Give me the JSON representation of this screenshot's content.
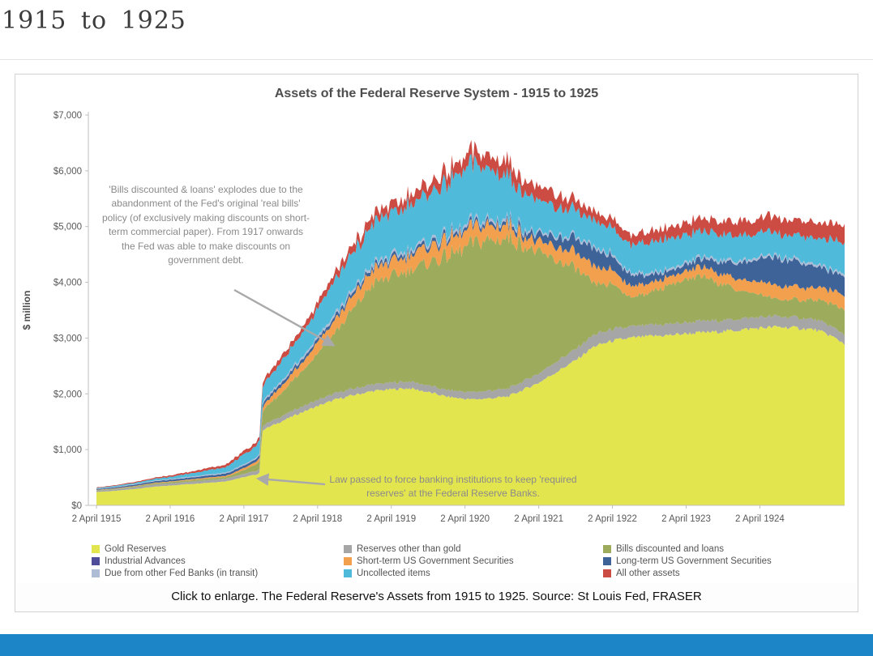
{
  "page": {
    "heading": "1915 to 1925",
    "caption": "Click to enlarge. The Federal Reserve's Assets from 1915 to 1925. Source: St Louis Fed, FRASER",
    "accent_bar_color": "#1c85c7"
  },
  "chart_data": {
    "type": "area",
    "stacked": true,
    "title": "Assets of the Federal Reserve System - 1915 to 1925",
    "xlabel": "",
    "ylabel": "$ million",
    "ylim": [
      0,
      7000
    ],
    "grid": false,
    "legend_position": "bottom",
    "y_tick_labels": [
      "$0",
      "$1,000",
      "$2,000",
      "$3,000",
      "$4,000",
      "$5,000",
      "$6,000",
      "$7,000"
    ],
    "x_tick_labels": [
      "2 April 1915",
      "2 April 1916",
      "2 April 1917",
      "2 April 1918",
      "2 April 1919",
      "2 April 1920",
      "2 April 1921",
      "2 April 1922",
      "2 April 1923",
      "2 April 1924"
    ],
    "x_tick_years": [
      1915.25,
      1916.25,
      1917.25,
      1918.25,
      1919.25,
      1920.25,
      1921.25,
      1922.25,
      1923.25,
      1924.25
    ],
    "x_years": [
      1915.25,
      1915.5,
      1915.75,
      1916.0,
      1916.25,
      1916.5,
      1916.75,
      1917.0,
      1917.1,
      1917.3,
      1917.42,
      1917.46,
      1917.5,
      1917.75,
      1918.0,
      1918.25,
      1918.5,
      1918.75,
      1919.0,
      1919.25,
      1919.5,
      1919.75,
      1920.0,
      1920.17,
      1920.33,
      1920.5,
      1920.67,
      1920.83,
      1921.0,
      1921.25,
      1921.5,
      1921.75,
      1922.0,
      1922.25,
      1922.5,
      1922.75,
      1923.0,
      1923.25,
      1923.5,
      1923.75,
      1924.0,
      1924.25,
      1924.5,
      1924.75,
      1925.0,
      1925.2,
      1925.4
    ],
    "series": [
      {
        "name": "Gold Reserves",
        "color": "#e3e54f",
        "values": [
          240,
          260,
          290,
          330,
          355,
          380,
          405,
          430,
          460,
          520,
          555,
          565,
          1350,
          1500,
          1650,
          1780,
          1900,
          1980,
          2050,
          2080,
          2100,
          2030,
          1950,
          1920,
          1900,
          1910,
          1930,
          1950,
          2050,
          2200,
          2400,
          2600,
          2850,
          2950,
          3000,
          3030,
          3050,
          3080,
          3100,
          3120,
          3150,
          3180,
          3200,
          3180,
          3150,
          3050,
          2900
        ]
      },
      {
        "name": "Reserves other than gold",
        "color": "#a6a6a6",
        "values": [
          25,
          28,
          32,
          38,
          40,
          44,
          47,
          50,
          54,
          60,
          65,
          68,
          80,
          90,
          100,
          110,
          115,
          118,
          120,
          120,
          120,
          120,
          120,
          125,
          130,
          135,
          140,
          145,
          150,
          170,
          190,
          200,
          210,
          205,
          200,
          200,
          200,
          200,
          200,
          200,
          200,
          195,
          190,
          185,
          180,
          175,
          170
        ]
      },
      {
        "name": "Bills discounted and loans",
        "color": "#9dab5c",
        "values": [
          8,
          10,
          14,
          20,
          22,
          25,
          28,
          30,
          40,
          80,
          120,
          140,
          250,
          420,
          600,
          850,
          1100,
          1450,
          1800,
          1900,
          2000,
          2200,
          2400,
          2500,
          2650,
          2700,
          2680,
          2700,
          2500,
          2150,
          1800,
          1450,
          900,
          800,
          520,
          570,
          700,
          760,
          800,
          650,
          500,
          400,
          300,
          320,
          350,
          400,
          450
        ]
      },
      {
        "name": "Industrial Advances",
        "color": "#4f4c99",
        "values": [
          0,
          0,
          0,
          0,
          0,
          0,
          0,
          0,
          0,
          0,
          0,
          0,
          0,
          0,
          0,
          0,
          0,
          0,
          0,
          0,
          0,
          0,
          0,
          0,
          0,
          0,
          0,
          0,
          0,
          0,
          0,
          0,
          0,
          0,
          0,
          0,
          0,
          0,
          0,
          0,
          0,
          0,
          0,
          0,
          0,
          0,
          0
        ]
      },
      {
        "name": "Short-term US Government Securities",
        "color": "#f2a04e",
        "values": [
          5,
          6,
          8,
          10,
          12,
          15,
          18,
          20,
          25,
          40,
          50,
          55,
          80,
          120,
          150,
          200,
          230,
          240,
          250,
          260,
          270,
          280,
          300,
          290,
          280,
          270,
          260,
          250,
          200,
          180,
          250,
          280,
          300,
          250,
          200,
          180,
          150,
          160,
          170,
          180,
          200,
          220,
          240,
          230,
          220,
          240,
          260
        ]
      },
      {
        "name": "Long-term US Government Securities",
        "color": "#3d6399",
        "values": [
          15,
          18,
          22,
          26,
          30,
          32,
          35,
          40,
          42,
          45,
          48,
          50,
          55,
          60,
          60,
          60,
          60,
          60,
          60,
          60,
          60,
          60,
          60,
          60,
          60,
          60,
          60,
          60,
          80,
          120,
          180,
          240,
          300,
          250,
          200,
          150,
          100,
          120,
          150,
          220,
          300,
          400,
          500,
          450,
          380,
          350,
          330
        ]
      },
      {
        "name": "Due from other Fed Banks (in transit)",
        "color": "#aebcd6",
        "values": [
          8,
          9,
          10,
          12,
          14,
          16,
          18,
          20,
          20,
          22,
          25,
          25,
          30,
          35,
          40,
          45,
          50,
          50,
          50,
          50,
          50,
          50,
          50,
          50,
          50,
          50,
          50,
          50,
          45,
          40,
          40,
          40,
          40,
          40,
          40,
          40,
          40,
          40,
          40,
          40,
          40,
          40,
          40,
          40,
          40,
          40,
          40
        ]
      },
      {
        "name": "Uncollected items",
        "color": "#4fbad9",
        "values": [
          12,
          16,
          22,
          30,
          40,
          55,
          75,
          100,
          130,
          180,
          220,
          230,
          280,
          340,
          400,
          500,
          600,
          650,
          700,
          750,
          800,
          850,
          900,
          950,
          1050,
          950,
          850,
          750,
          650,
          570,
          500,
          470,
          450,
          480,
          500,
          530,
          550,
          500,
          450,
          450,
          450,
          430,
          400,
          430,
          470,
          520,
          550
        ]
      },
      {
        "name": "All other assets",
        "color": "#cc4b43",
        "values": [
          10,
          12,
          15,
          20,
          25,
          30,
          40,
          50,
          55,
          60,
          65,
          65,
          80,
          90,
          100,
          115,
          130,
          140,
          150,
          160,
          170,
          185,
          200,
          210,
          220,
          230,
          240,
          250,
          250,
          240,
          220,
          180,
          150,
          160,
          180,
          190,
          200,
          210,
          220,
          235,
          250,
          260,
          270,
          280,
          290,
          295,
          300
        ]
      }
    ],
    "annotations": [
      {
        "text": "'Bills discounted & loans' explodes due to the abandonment of the Fed's original 'real bills' policy (of exclusively making discounts on short-term commercial paper). From 1917 onwards the Fed was able to make discounts on government debt."
      },
      {
        "text": "Law passed to force banking institutions to keep 'required reserves' at the Federal Reserve Banks."
      }
    ]
  }
}
